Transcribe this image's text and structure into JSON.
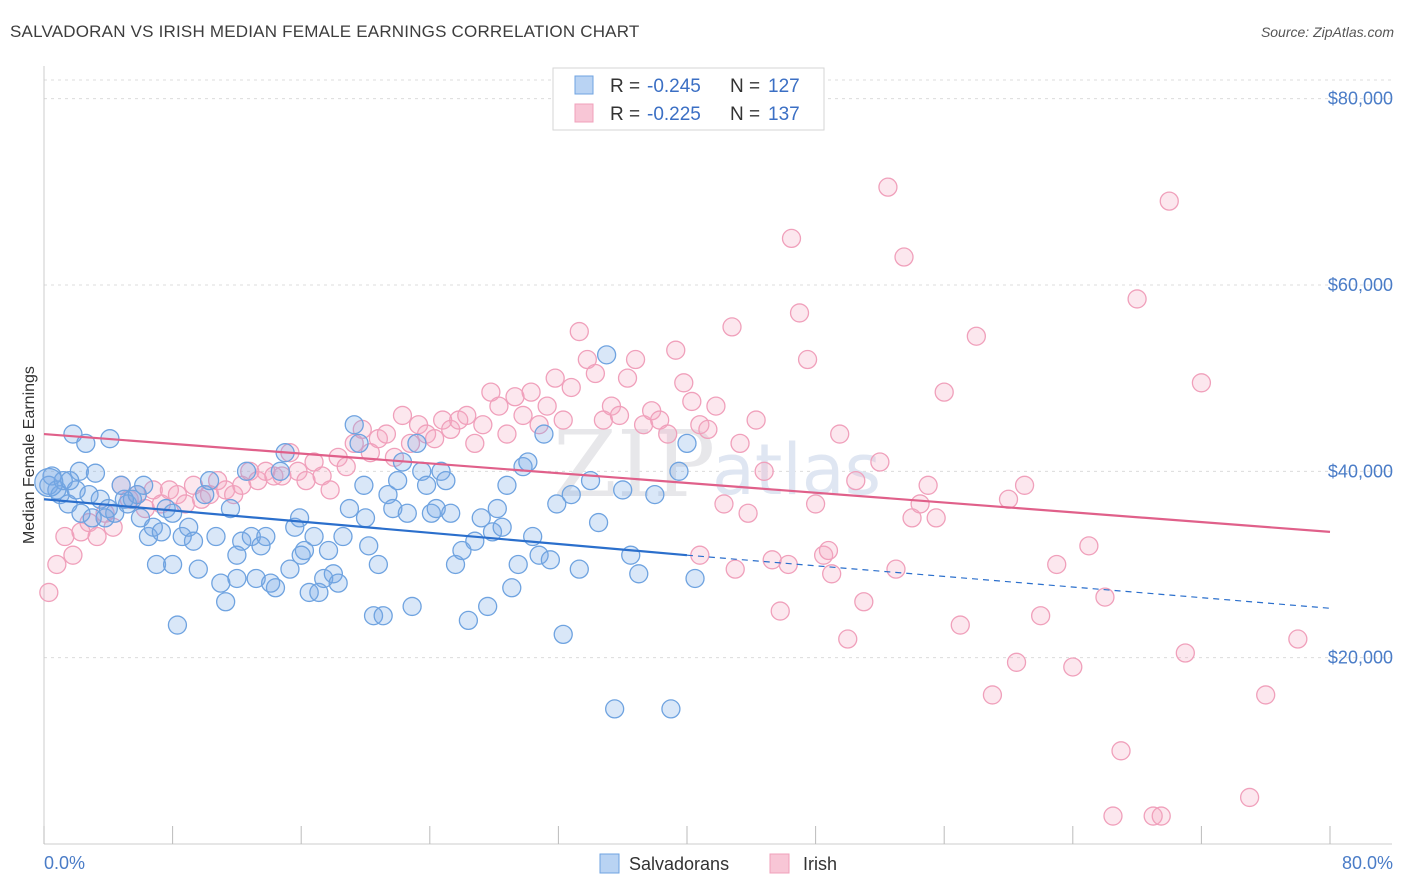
{
  "title": "SALVADORAN VS IRISH MEDIAN FEMALE EARNINGS CORRELATION CHART",
  "source": "Source: ZipAtlas.com",
  "colors": {
    "salvadoran": "#6fa3e0",
    "salvadoran_line": "#2b6fcc",
    "irish": "#f0a0bb",
    "irish_line": "#e0608a",
    "axis_text": "#4a7cc7"
  },
  "chart_data": {
    "type": "scatter",
    "title": "SALVADORAN VS IRISH MEDIAN FEMALE EARNINGS CORRELATION CHART",
    "ylabel": "Median Female Earnings",
    "xlabel": "",
    "xlim": [
      0,
      80
    ],
    "ylim": [
      0,
      82000
    ],
    "x_tick_labels": [
      "0.0%",
      "80.0%"
    ],
    "y_tick_labels": [
      "$20,000",
      "$40,000",
      "$60,000",
      "$80,000"
    ],
    "y_ticks": [
      20000,
      40000,
      60000,
      80000
    ],
    "grid": true,
    "legend_top": [
      {
        "series": "Salvadorans",
        "r_label": "R =",
        "r_value": "-0.245",
        "n_label": "N =",
        "n_value": "127"
      },
      {
        "series": "Irish",
        "r_label": "R =",
        "r_value": "-0.225",
        "n_label": "N =",
        "n_value": "137"
      }
    ],
    "legend_bottom": [
      "Salvadorans",
      "Irish"
    ],
    "watermark": "ZIPatlas",
    "series": [
      {
        "name": "Salvadorans",
        "trend": {
          "x0": 0,
          "y0": 37000,
          "x1": 40,
          "y1": 31000,
          "dashed_to_x": 80,
          "dashed_to_y": 25300
        },
        "points": [
          [
            0.3,
            38500
          ],
          [
            0.5,
            39500
          ],
          [
            0.8,
            38000
          ],
          [
            1.0,
            37500
          ],
          [
            1.2,
            39000
          ],
          [
            1.5,
            36500
          ],
          [
            1.8,
            44000
          ],
          [
            2.0,
            38000
          ],
          [
            2.3,
            35500
          ],
          [
            2.6,
            43000
          ],
          [
            2.8,
            37500
          ],
          [
            3.2,
            39800
          ],
          [
            3.5,
            37000
          ],
          [
            3.8,
            35000
          ],
          [
            4.1,
            43500
          ],
          [
            4.4,
            35500
          ],
          [
            4.8,
            38500
          ],
          [
            5.2,
            36500
          ],
          [
            5.5,
            37000
          ],
          [
            5.8,
            37500
          ],
          [
            6.2,
            38500
          ],
          [
            6.5,
            33000
          ],
          [
            6.8,
            34000
          ],
          [
            7.0,
            30000
          ],
          [
            7.3,
            33500
          ],
          [
            7.6,
            36000
          ],
          [
            8.0,
            35500
          ],
          [
            8.3,
            23500
          ],
          [
            8.6,
            33000
          ],
          [
            9.0,
            34000
          ],
          [
            9.3,
            32500
          ],
          [
            9.6,
            29500
          ],
          [
            10.0,
            37500
          ],
          [
            10.3,
            39000
          ],
          [
            10.7,
            33000
          ],
          [
            11.0,
            28000
          ],
          [
            11.3,
            26000
          ],
          [
            11.6,
            36000
          ],
          [
            12.0,
            28500
          ],
          [
            12.3,
            32500
          ],
          [
            12.6,
            40000
          ],
          [
            12.9,
            33000
          ],
          [
            13.2,
            28500
          ],
          [
            13.5,
            32000
          ],
          [
            13.8,
            33000
          ],
          [
            14.1,
            28000
          ],
          [
            14.4,
            27500
          ],
          [
            14.7,
            40000
          ],
          [
            15.0,
            42000
          ],
          [
            15.3,
            29500
          ],
          [
            15.6,
            34000
          ],
          [
            15.9,
            35000
          ],
          [
            16.2,
            31500
          ],
          [
            16.5,
            27000
          ],
          [
            16.8,
            33000
          ],
          [
            17.1,
            27000
          ],
          [
            17.4,
            28500
          ],
          [
            17.7,
            31500
          ],
          [
            18.0,
            29000
          ],
          [
            18.3,
            28000
          ],
          [
            18.6,
            33000
          ],
          [
            19.0,
            36000
          ],
          [
            19.3,
            45000
          ],
          [
            19.6,
            43000
          ],
          [
            19.9,
            38500
          ],
          [
            20.2,
            32000
          ],
          [
            20.5,
            24500
          ],
          [
            20.8,
            30000
          ],
          [
            21.1,
            24500
          ],
          [
            21.4,
            37500
          ],
          [
            21.7,
            36000
          ],
          [
            22.0,
            39000
          ],
          [
            22.3,
            41000
          ],
          [
            22.6,
            35500
          ],
          [
            22.9,
            25500
          ],
          [
            23.2,
            43000
          ],
          [
            23.5,
            40000
          ],
          [
            23.8,
            38500
          ],
          [
            24.1,
            35500
          ],
          [
            24.4,
            36000
          ],
          [
            24.7,
            40000
          ],
          [
            25.0,
            39000
          ],
          [
            25.3,
            35500
          ],
          [
            25.6,
            30000
          ],
          [
            26.0,
            31500
          ],
          [
            26.4,
            24000
          ],
          [
            26.8,
            32500
          ],
          [
            27.2,
            35000
          ],
          [
            27.6,
            25500
          ],
          [
            27.9,
            33500
          ],
          [
            28.2,
            36000
          ],
          [
            28.5,
            34000
          ],
          [
            28.8,
            38500
          ],
          [
            29.1,
            27500
          ],
          [
            29.5,
            30000
          ],
          [
            29.8,
            40500
          ],
          [
            30.1,
            41000
          ],
          [
            30.4,
            33000
          ],
          [
            30.8,
            31000
          ],
          [
            31.1,
            44000
          ],
          [
            31.5,
            30500
          ],
          [
            31.9,
            36500
          ],
          [
            32.3,
            22500
          ],
          [
            32.8,
            37500
          ],
          [
            33.3,
            29500
          ],
          [
            34.0,
            39000
          ],
          [
            34.5,
            34500
          ],
          [
            35.0,
            52500
          ],
          [
            35.5,
            14500
          ],
          [
            36.0,
            38000
          ],
          [
            36.5,
            31000
          ],
          [
            37.0,
            29000
          ],
          [
            38.0,
            37500
          ],
          [
            39.0,
            14500
          ],
          [
            39.5,
            40000
          ],
          [
            40.0,
            43000
          ],
          [
            40.5,
            28500
          ],
          [
            2.2,
            40000
          ],
          [
            4.0,
            36000
          ],
          [
            6.0,
            35000
          ],
          [
            8.0,
            30000
          ],
          [
            12.0,
            31000
          ],
          [
            16.0,
            31000
          ],
          [
            20.0,
            35000
          ],
          [
            1.6,
            39000
          ],
          [
            3.0,
            35000
          ],
          [
            5.0,
            37000
          ]
        ]
      },
      {
        "name": "Irish",
        "trend": {
          "x0": 0,
          "y0": 44000,
          "x1": 80,
          "y1": 33500
        },
        "points": [
          [
            0.3,
            27000
          ],
          [
            0.8,
            30000
          ],
          [
            1.3,
            33000
          ],
          [
            1.8,
            31000
          ],
          [
            2.3,
            33500
          ],
          [
            2.8,
            34500
          ],
          [
            3.3,
            33000
          ],
          [
            3.8,
            35500
          ],
          [
            4.3,
            34000
          ],
          [
            4.8,
            38500
          ],
          [
            5.3,
            37000
          ],
          [
            5.8,
            37500
          ],
          [
            6.3,
            36000
          ],
          [
            6.8,
            38000
          ],
          [
            7.3,
            36500
          ],
          [
            7.8,
            38000
          ],
          [
            8.3,
            37500
          ],
          [
            8.8,
            36500
          ],
          [
            9.3,
            38500
          ],
          [
            9.8,
            37000
          ],
          [
            10.3,
            37500
          ],
          [
            10.8,
            39000
          ],
          [
            11.3,
            38000
          ],
          [
            11.8,
            37500
          ],
          [
            12.3,
            38500
          ],
          [
            12.8,
            40000
          ],
          [
            13.3,
            39000
          ],
          [
            13.8,
            40000
          ],
          [
            14.3,
            39500
          ],
          [
            14.8,
            39500
          ],
          [
            15.3,
            42000
          ],
          [
            15.8,
            40000
          ],
          [
            16.3,
            39000
          ],
          [
            16.8,
            41000
          ],
          [
            17.3,
            39500
          ],
          [
            17.8,
            38000
          ],
          [
            18.3,
            41500
          ],
          [
            18.8,
            40500
          ],
          [
            19.3,
            43000
          ],
          [
            19.8,
            44500
          ],
          [
            20.3,
            42000
          ],
          [
            20.8,
            43500
          ],
          [
            21.3,
            44000
          ],
          [
            21.8,
            41500
          ],
          [
            22.3,
            46000
          ],
          [
            22.8,
            43000
          ],
          [
            23.3,
            45000
          ],
          [
            23.8,
            44000
          ],
          [
            24.3,
            43500
          ],
          [
            24.8,
            45500
          ],
          [
            25.3,
            44500
          ],
          [
            25.8,
            45500
          ],
          [
            26.3,
            46000
          ],
          [
            26.8,
            43000
          ],
          [
            27.3,
            45000
          ],
          [
            27.8,
            48500
          ],
          [
            28.3,
            47000
          ],
          [
            28.8,
            44000
          ],
          [
            29.3,
            48000
          ],
          [
            29.8,
            46000
          ],
          [
            30.3,
            48500
          ],
          [
            30.8,
            45000
          ],
          [
            31.3,
            47000
          ],
          [
            31.8,
            50000
          ],
          [
            32.3,
            45500
          ],
          [
            32.8,
            49000
          ],
          [
            33.3,
            55000
          ],
          [
            33.8,
            52000
          ],
          [
            34.3,
            50500
          ],
          [
            34.8,
            45500
          ],
          [
            35.3,
            47000
          ],
          [
            35.8,
            46000
          ],
          [
            36.3,
            50000
          ],
          [
            36.8,
            52000
          ],
          [
            37.3,
            45000
          ],
          [
            37.8,
            46500
          ],
          [
            38.3,
            45500
          ],
          [
            38.8,
            44000
          ],
          [
            39.3,
            53000
          ],
          [
            39.8,
            49500
          ],
          [
            40.3,
            47500
          ],
          [
            40.8,
            45000
          ],
          [
            41.3,
            44500
          ],
          [
            41.8,
            47000
          ],
          [
            42.3,
            36500
          ],
          [
            42.8,
            55500
          ],
          [
            43.3,
            43000
          ],
          [
            43.8,
            35500
          ],
          [
            44.3,
            45500
          ],
          [
            44.8,
            40000
          ],
          [
            45.3,
            30500
          ],
          [
            45.8,
            25000
          ],
          [
            46.3,
            30000
          ],
          [
            47.0,
            57000
          ],
          [
            47.5,
            52000
          ],
          [
            48.0,
            36500
          ],
          [
            48.5,
            31000
          ],
          [
            49.0,
            29000
          ],
          [
            49.5,
            44000
          ],
          [
            50.0,
            22000
          ],
          [
            50.5,
            39000
          ],
          [
            51.0,
            26000
          ],
          [
            52.0,
            41000
          ],
          [
            52.5,
            70500
          ],
          [
            53.0,
            29500
          ],
          [
            53.5,
            63000
          ],
          [
            54.0,
            35000
          ],
          [
            54.5,
            36500
          ],
          [
            55.0,
            38500
          ],
          [
            55.5,
            35000
          ],
          [
            56.0,
            48500
          ],
          [
            57.0,
            23500
          ],
          [
            58.0,
            54500
          ],
          [
            59.0,
            16000
          ],
          [
            60.0,
            37000
          ],
          [
            60.5,
            19500
          ],
          [
            61.0,
            38500
          ],
          [
            62.0,
            24500
          ],
          [
            63.0,
            30000
          ],
          [
            64.0,
            19000
          ],
          [
            65.0,
            32000
          ],
          [
            66.0,
            26500
          ],
          [
            67.0,
            10000
          ],
          [
            68.0,
            58500
          ],
          [
            69.0,
            3000
          ],
          [
            70.0,
            69000
          ],
          [
            71.0,
            20500
          ],
          [
            72.0,
            49500
          ],
          [
            75.0,
            5000
          ],
          [
            76.0,
            16000
          ],
          [
            78.0,
            22000
          ],
          [
            46.5,
            65000
          ],
          [
            66.5,
            3000
          ],
          [
            69.5,
            3000
          ],
          [
            40.8,
            31000
          ],
          [
            48.8,
            31500
          ],
          [
            43.0,
            29500
          ]
        ]
      }
    ]
  }
}
